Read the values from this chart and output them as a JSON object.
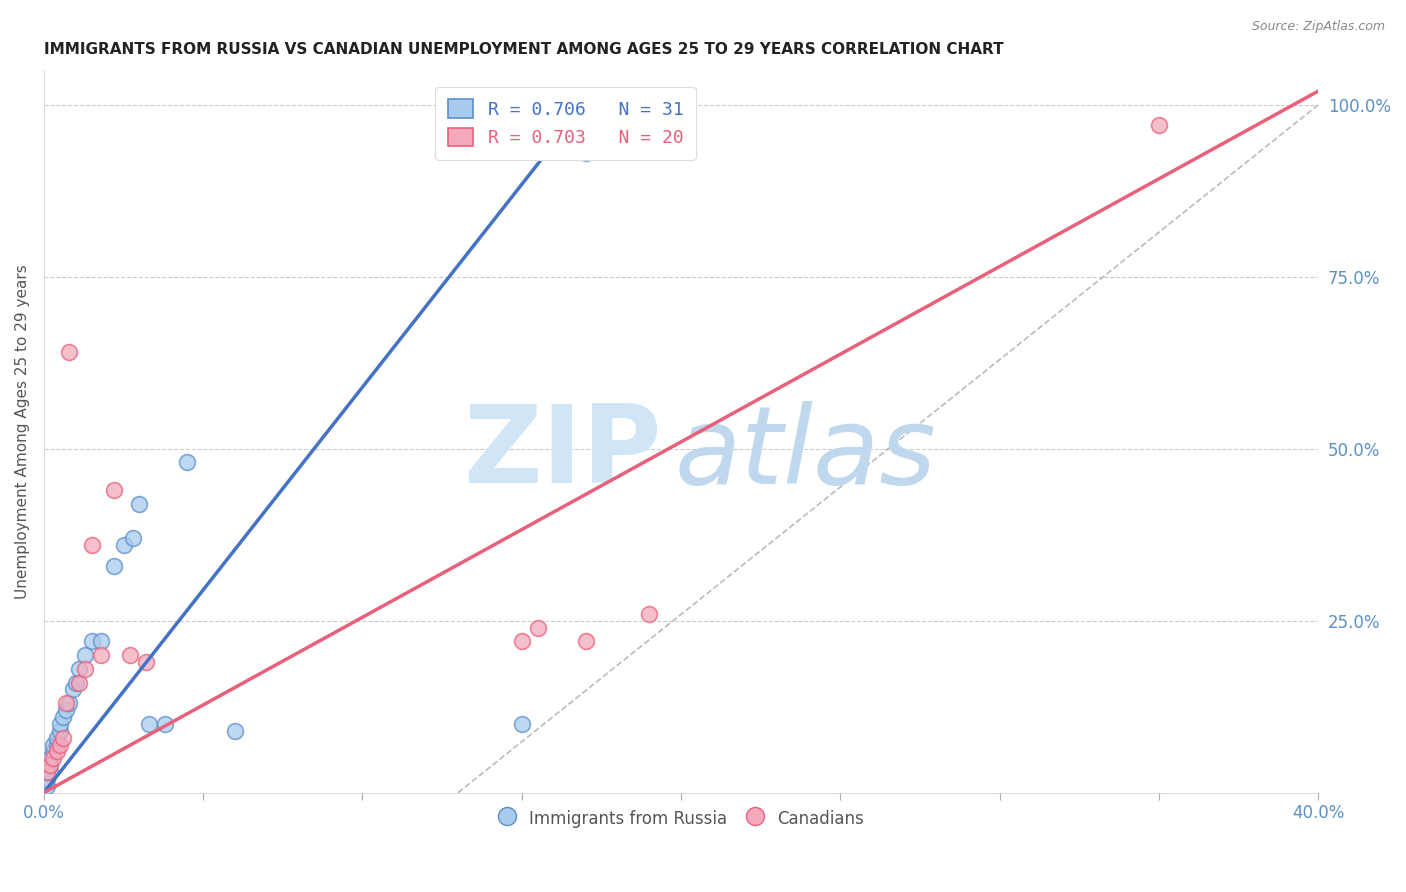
{
  "title": "IMMIGRANTS FROM RUSSIA VS CANADIAN UNEMPLOYMENT AMONG AGES 25 TO 29 YEARS CORRELATION CHART",
  "source": "Source: ZipAtlas.com",
  "ylabel": "Unemployment Among Ages 25 to 29 years",
  "xlim": [
    0.0,
    0.4
  ],
  "ylim": [
    0.0,
    1.05
  ],
  "xticks": [
    0.0,
    0.05,
    0.1,
    0.15,
    0.2,
    0.25,
    0.3,
    0.35,
    0.4
  ],
  "xtick_labels": [
    "0.0%",
    "",
    "",
    "",
    "",
    "",
    "",
    "",
    "40.0%"
  ],
  "yticks_right": [
    0.25,
    0.5,
    0.75,
    1.0
  ],
  "ytick_right_labels": [
    "25.0%",
    "50.0%",
    "75.0%",
    "100.0%"
  ],
  "R_blue": 0.706,
  "N_blue": 31,
  "R_pink": 0.703,
  "N_pink": 20,
  "blue_fill_color": "#A8CBEE",
  "pink_fill_color": "#F4AABC",
  "blue_edge_color": "#5B8EC8",
  "pink_edge_color": "#E8607A",
  "blue_line_color": "#4472C4",
  "pink_line_color": "#E8607A",
  "right_axis_color": "#5B8FC7",
  "blue_scatter_x": [
    0.001,
    0.001,
    0.001,
    0.002,
    0.002,
    0.002,
    0.003,
    0.003,
    0.004,
    0.004,
    0.005,
    0.005,
    0.006,
    0.007,
    0.008,
    0.009,
    0.01,
    0.011,
    0.013,
    0.015,
    0.018,
    0.022,
    0.025,
    0.028,
    0.03,
    0.033,
    0.038,
    0.045,
    0.06,
    0.15,
    0.17
  ],
  "blue_scatter_y": [
    0.01,
    0.02,
    0.03,
    0.03,
    0.04,
    0.05,
    0.06,
    0.07,
    0.07,
    0.08,
    0.09,
    0.1,
    0.11,
    0.12,
    0.13,
    0.15,
    0.16,
    0.18,
    0.2,
    0.22,
    0.22,
    0.33,
    0.36,
    0.37,
    0.42,
    0.1,
    0.1,
    0.48,
    0.09,
    0.1,
    0.93
  ],
  "pink_scatter_x": [
    0.001,
    0.002,
    0.003,
    0.004,
    0.005,
    0.006,
    0.007,
    0.008,
    0.011,
    0.013,
    0.015,
    0.018,
    0.022,
    0.027,
    0.032,
    0.15,
    0.155,
    0.17,
    0.19,
    0.35
  ],
  "pink_scatter_y": [
    0.03,
    0.04,
    0.05,
    0.06,
    0.07,
    0.08,
    0.13,
    0.64,
    0.16,
    0.18,
    0.36,
    0.2,
    0.44,
    0.2,
    0.19,
    0.22,
    0.24,
    0.22,
    0.26,
    0.97
  ],
  "blue_line_x": [
    0.0,
    0.173
  ],
  "blue_line_y": [
    0.0,
    1.02
  ],
  "pink_line_x": [
    0.0,
    0.4
  ],
  "pink_line_y": [
    0.0,
    1.02
  ],
  "ref_line_x": [
    0.13,
    0.4
  ],
  "ref_line_y": [
    0.0,
    1.0
  ]
}
